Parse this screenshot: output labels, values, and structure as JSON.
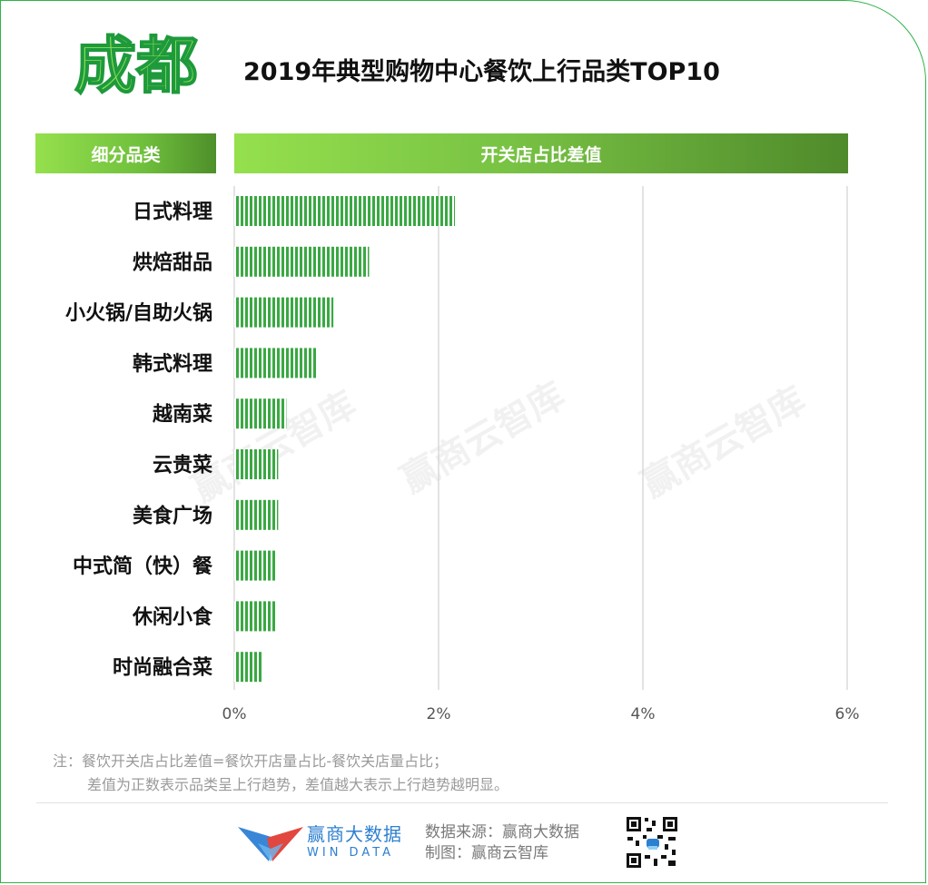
{
  "header": {
    "city": "成都",
    "title": "2019年典型购物中心餐饮上行品类TOP10",
    "col_category": "细分品类",
    "col_value": "开关店占比差值"
  },
  "colors": {
    "bar": "#3aa843",
    "header_light": "#95e04d",
    "header_dark": "#4f8a2b",
    "city_fill": "#8fe05a",
    "frame": "#2fb24a"
  },
  "chart_data": {
    "type": "bar",
    "orientation": "horizontal",
    "title": "2019年典型购物中心餐饮上行品类TOP10",
    "categories": [
      "日式料理",
      "烘焙甜品",
      "小火锅/自助火锅",
      "韩式料理",
      "越南菜",
      "云贵菜",
      "美食广场",
      "中式简（快）餐",
      "休闲小食",
      "时尚融合菜"
    ],
    "values": [
      2.16,
      1.32,
      0.97,
      0.81,
      0.51,
      0.43,
      0.43,
      0.41,
      0.41,
      0.27
    ],
    "unit": "%",
    "xlim": [
      0,
      6
    ],
    "xticks": [
      "0%",
      "2%",
      "4%",
      "6%"
    ],
    "grid": true
  },
  "watermark": "赢商云智库",
  "note": {
    "line1": "注：餐饮开关店占比差值=餐饮开店量占比-餐饮关店量占比；",
    "line2": "差值为正数表示品类呈上行趋势，差值越大表示上行趋势越明显。"
  },
  "footer": {
    "brand_cn": "赢商大数据",
    "brand_en": "WIN DATA",
    "source": "数据来源：赢商大数据",
    "maker": "制图：赢商云智库"
  }
}
